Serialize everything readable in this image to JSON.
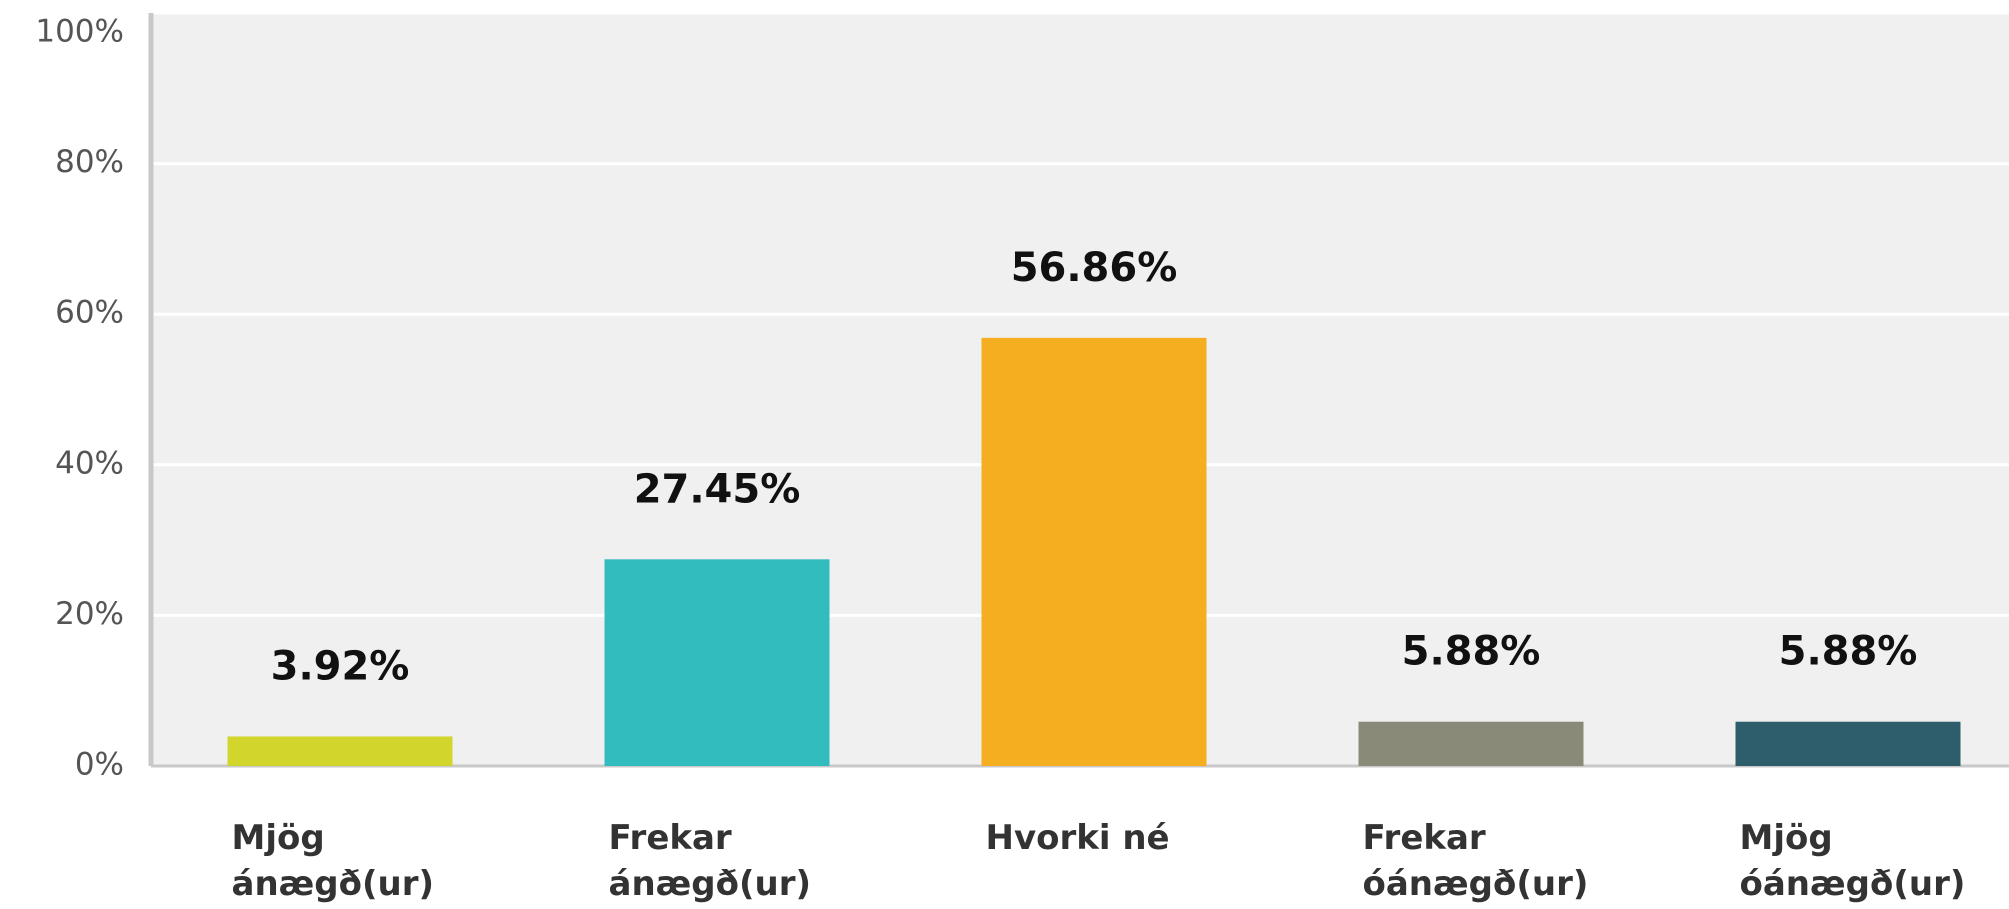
{
  "chart_data": {
    "type": "bar",
    "categories": [
      "Mjög ánægð(ur)",
      "Frekar ánægð(ur)",
      "Hvorki né",
      "Frekar óánægð(ur)",
      "Mjög óánægð(ur)"
    ],
    "values": [
      3.92,
      27.45,
      56.86,
      5.88,
      5.88
    ],
    "value_labels": [
      "3.92%",
      "27.45%",
      "56.86%",
      "5.88%",
      "5.88%"
    ],
    "colors": [
      "#d2d52c",
      "#33bcbe",
      "#f5ae1f",
      "#8a8a78",
      "#2e5e6b"
    ],
    "ylim": [
      0,
      100
    ],
    "yticks": [
      {
        "value": 0,
        "label": "0%"
      },
      {
        "value": 20,
        "label": "20%"
      },
      {
        "value": 40,
        "label": "40%"
      },
      {
        "value": 60,
        "label": "60%"
      },
      {
        "value": 80,
        "label": "80%"
      },
      {
        "value": 100,
        "label": "100%"
      }
    ],
    "grid": true
  }
}
